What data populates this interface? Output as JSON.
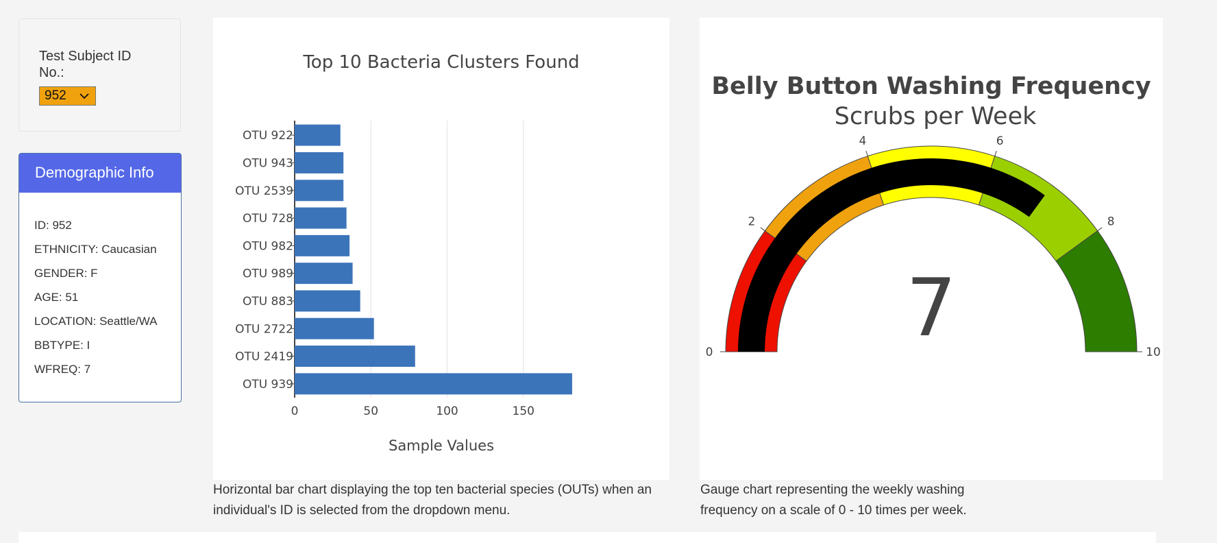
{
  "selector": {
    "label": "Test Subject ID No.:",
    "selected": "952"
  },
  "demographics": {
    "header": "Demographic Info",
    "lines": [
      "ID: 952",
      "ETHNICITY: Caucasian",
      "GENDER: F",
      "AGE: 51",
      "LOCATION: Seattle/WA",
      "BBTYPE: I",
      "WFREQ: 7"
    ]
  },
  "captions": {
    "bar": "Horizontal bar chart displaying the top ten bacterial species (OUTs) when an individual's ID is selected from the dropdown menu.",
    "gauge": "Gauge chart representing the weekly washing frequency on a scale of 0 - 10 times per week."
  },
  "chart_data": [
    {
      "type": "bar",
      "orientation": "horizontal",
      "title": "Top 10 Bacteria Clusters Found",
      "xlabel": "Sample Values",
      "ylabel": "",
      "categories": [
        "OTU 922",
        "OTU 943",
        "OTU 2539",
        "OTU 728",
        "OTU 982",
        "OTU 989",
        "OTU 883",
        "OTU 2722",
        "OTU 2419",
        "OTU 939"
      ],
      "values": [
        30,
        32,
        32,
        34,
        36,
        38,
        43,
        52,
        79,
        182
      ],
      "xlim": [
        0,
        185
      ],
      "xticks": [
        0,
        50,
        100,
        150
      ],
      "grid": true,
      "bar_color": "#3c74ba"
    },
    {
      "type": "gauge",
      "title": "Belly Button Washing Frequency",
      "subtitle": "Scrubs per Week",
      "value": 7,
      "range": [
        0,
        10
      ],
      "ticks": [
        0,
        2,
        4,
        6,
        8,
        10
      ],
      "bar_color": "#000000",
      "steps": [
        {
          "range": [
            0,
            2
          ],
          "color": "#ee1100"
        },
        {
          "range": [
            2,
            4
          ],
          "color": "#f0a20e"
        },
        {
          "range": [
            4,
            6
          ],
          "color": "#ffff00"
        },
        {
          "range": [
            6,
            8
          ],
          "color": "#9ccf00"
        },
        {
          "range": [
            8,
            10
          ],
          "color": "#2d7d00"
        }
      ]
    }
  ]
}
